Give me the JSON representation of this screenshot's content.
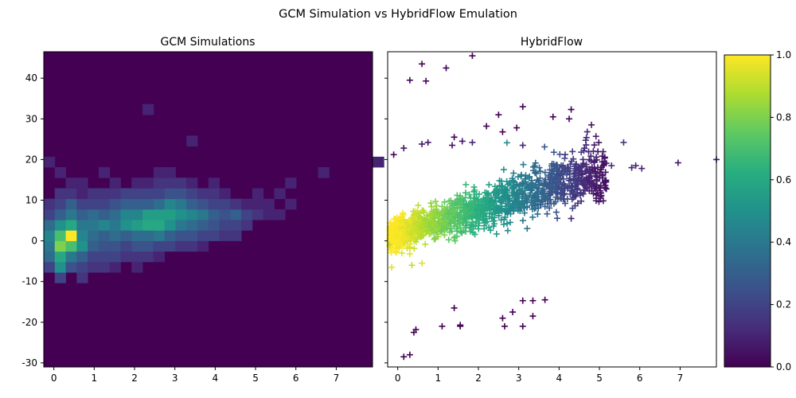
{
  "figure": {
    "suptitle": "GCM Simulation vs HybridFlow Emulation"
  },
  "chart_data": [
    {
      "type": "heatmap",
      "title": "GCM Simulations",
      "xlabel": "",
      "ylabel": "",
      "xlim": [
        -0.25,
        7.9
      ],
      "ylim": [
        -31,
        46.5
      ],
      "xticks": [
        0,
        1,
        2,
        3,
        4,
        5,
        6,
        7
      ],
      "yticks": [
        -30,
        -20,
        -10,
        0,
        10,
        20,
        30,
        40
      ],
      "colormap": "viridis",
      "bin_x0": -0.25,
      "bin_dx": 0.272,
      "bin_y0": -31,
      "bin_dy": 2.585,
      "cells": [
        [
          0,
          9,
          0.2
        ],
        [
          0,
          10,
          0.35
        ],
        [
          0,
          11,
          0.4
        ],
        [
          0,
          12,
          0.45
        ],
        [
          0,
          13,
          0.35
        ],
        [
          0,
          14,
          0.2
        ],
        [
          0,
          15,
          0.15
        ],
        [
          0,
          19,
          0.1
        ],
        [
          1,
          8,
          0.2
        ],
        [
          1,
          9,
          0.5
        ],
        [
          1,
          10,
          0.6
        ],
        [
          1,
          11,
          0.8
        ],
        [
          1,
          12,
          0.7
        ],
        [
          1,
          13,
          0.5
        ],
        [
          1,
          14,
          0.3
        ],
        [
          1,
          15,
          0.2
        ],
        [
          1,
          16,
          0.15
        ],
        [
          1,
          18,
          0.1
        ],
        [
          2,
          9,
          0.25
        ],
        [
          2,
          10,
          0.4
        ],
        [
          2,
          11,
          0.7
        ],
        [
          2,
          12,
          1.0
        ],
        [
          2,
          13,
          0.6
        ],
        [
          2,
          14,
          0.4
        ],
        [
          2,
          15,
          0.3
        ],
        [
          2,
          16,
          0.15
        ],
        [
          2,
          17,
          0.1
        ],
        [
          3,
          8,
          0.15
        ],
        [
          3,
          9,
          0.2
        ],
        [
          3,
          10,
          0.3
        ],
        [
          3,
          11,
          0.5
        ],
        [
          3,
          12,
          0.45
        ],
        [
          3,
          13,
          0.4
        ],
        [
          3,
          14,
          0.3
        ],
        [
          3,
          15,
          0.2
        ],
        [
          3,
          16,
          0.1
        ],
        [
          3,
          17,
          0.1
        ],
        [
          4,
          9,
          0.15
        ],
        [
          4,
          10,
          0.2
        ],
        [
          4,
          11,
          0.3
        ],
        [
          4,
          12,
          0.35
        ],
        [
          4,
          13,
          0.4
        ],
        [
          4,
          14,
          0.35
        ],
        [
          4,
          15,
          0.2
        ],
        [
          4,
          16,
          0.15
        ],
        [
          5,
          9,
          0.15
        ],
        [
          5,
          10,
          0.2
        ],
        [
          5,
          11,
          0.25
        ],
        [
          5,
          12,
          0.3
        ],
        [
          5,
          13,
          0.45
        ],
        [
          5,
          14,
          0.3
        ],
        [
          5,
          15,
          0.2
        ],
        [
          5,
          16,
          0.15
        ],
        [
          5,
          18,
          0.1
        ],
        [
          6,
          9,
          0.1
        ],
        [
          6,
          10,
          0.2
        ],
        [
          6,
          11,
          0.25
        ],
        [
          6,
          12,
          0.35
        ],
        [
          6,
          13,
          0.4
        ],
        [
          6,
          14,
          0.35
        ],
        [
          6,
          15,
          0.25
        ],
        [
          6,
          16,
          0.15
        ],
        [
          6,
          17,
          0.1
        ],
        [
          7,
          10,
          0.15
        ],
        [
          7,
          11,
          0.2
        ],
        [
          7,
          12,
          0.3
        ],
        [
          7,
          13,
          0.5
        ],
        [
          7,
          14,
          0.45
        ],
        [
          7,
          15,
          0.3
        ],
        [
          7,
          16,
          0.2
        ],
        [
          8,
          9,
          0.1
        ],
        [
          8,
          10,
          0.15
        ],
        [
          8,
          11,
          0.25
        ],
        [
          8,
          12,
          0.35
        ],
        [
          8,
          13,
          0.55
        ],
        [
          8,
          14,
          0.45
        ],
        [
          8,
          15,
          0.3
        ],
        [
          8,
          16,
          0.2
        ],
        [
          8,
          17,
          0.1
        ],
        [
          9,
          10,
          0.15
        ],
        [
          9,
          11,
          0.25
        ],
        [
          9,
          12,
          0.35
        ],
        [
          9,
          13,
          0.6
        ],
        [
          9,
          14,
          0.55
        ],
        [
          9,
          15,
          0.3
        ],
        [
          9,
          16,
          0.2
        ],
        [
          9,
          17,
          0.1
        ],
        [
          9,
          24,
          0.1
        ],
        [
          10,
          10,
          0.1
        ],
        [
          10,
          11,
          0.2
        ],
        [
          10,
          12,
          0.4
        ],
        [
          10,
          13,
          0.6
        ],
        [
          10,
          14,
          0.55
        ],
        [
          10,
          15,
          0.35
        ],
        [
          10,
          16,
          0.2
        ],
        [
          10,
          17,
          0.15
        ],
        [
          10,
          18,
          0.1
        ],
        [
          11,
          11,
          0.2
        ],
        [
          11,
          12,
          0.3
        ],
        [
          11,
          13,
          0.5
        ],
        [
          11,
          14,
          0.55
        ],
        [
          11,
          15,
          0.45
        ],
        [
          11,
          16,
          0.25
        ],
        [
          11,
          17,
          0.15
        ],
        [
          11,
          18,
          0.1
        ],
        [
          12,
          11,
          0.15
        ],
        [
          12,
          12,
          0.25
        ],
        [
          12,
          13,
          0.4
        ],
        [
          12,
          14,
          0.5
        ],
        [
          12,
          15,
          0.4
        ],
        [
          12,
          16,
          0.25
        ],
        [
          12,
          17,
          0.15
        ],
        [
          13,
          11,
          0.15
        ],
        [
          13,
          12,
          0.25
        ],
        [
          13,
          13,
          0.35
        ],
        [
          13,
          14,
          0.45
        ],
        [
          13,
          15,
          0.3
        ],
        [
          13,
          16,
          0.2
        ],
        [
          13,
          17,
          0.1
        ],
        [
          13,
          21,
          0.1
        ],
        [
          14,
          11,
          0.1
        ],
        [
          14,
          12,
          0.2
        ],
        [
          14,
          13,
          0.3
        ],
        [
          14,
          14,
          0.4
        ],
        [
          14,
          15,
          0.25
        ],
        [
          14,
          16,
          0.15
        ],
        [
          15,
          12,
          0.2
        ],
        [
          15,
          13,
          0.25
        ],
        [
          15,
          14,
          0.3
        ],
        [
          15,
          15,
          0.2
        ],
        [
          15,
          16,
          0.15
        ],
        [
          15,
          17,
          0.1
        ],
        [
          16,
          12,
          0.15
        ],
        [
          16,
          13,
          0.2
        ],
        [
          16,
          14,
          0.25
        ],
        [
          16,
          15,
          0.2
        ],
        [
          16,
          16,
          0.1
        ],
        [
          17,
          12,
          0.15
        ],
        [
          17,
          13,
          0.2
        ],
        [
          17,
          14,
          0.3
        ],
        [
          17,
          15,
          0.15
        ],
        [
          18,
          13,
          0.15
        ],
        [
          18,
          14,
          0.2
        ],
        [
          18,
          15,
          0.1
        ],
        [
          19,
          14,
          0.15
        ],
        [
          19,
          15,
          0.1
        ],
        [
          19,
          16,
          0.1
        ],
        [
          20,
          14,
          0.1
        ],
        [
          20,
          15,
          0.1
        ],
        [
          21,
          14,
          0.1
        ],
        [
          21,
          16,
          0.1
        ],
        [
          22,
          15,
          0.1
        ],
        [
          22,
          17,
          0.1
        ],
        [
          25,
          18,
          0.1
        ],
        [
          30,
          19,
          0.1
        ]
      ]
    },
    {
      "type": "scatter",
      "title": "HybridFlow",
      "marker": "+",
      "xlabel": "",
      "ylabel": "",
      "xlim": [
        -0.25,
        7.9
      ],
      "ylim": [
        -31,
        46.5
      ],
      "xticks": [
        0,
        1,
        2,
        3,
        4,
        5,
        6,
        7
      ],
      "yticks": [
        -30,
        -20,
        -10,
        0,
        10,
        20,
        30,
        40
      ],
      "colormap": "viridis",
      "points": [
        [
          1.85,
          45.5,
          0.0
        ],
        [
          0.6,
          43.5,
          0.0
        ],
        [
          1.2,
          42.5,
          0.0
        ],
        [
          0.3,
          39.5,
          0.0
        ],
        [
          0.7,
          39.3,
          0.0
        ],
        [
          3.1,
          33,
          0.0
        ],
        [
          4.3,
          32.3,
          0.0
        ],
        [
          2.5,
          31,
          0.0
        ],
        [
          3.85,
          30.5,
          0.0
        ],
        [
          4.25,
          30,
          0.0
        ],
        [
          2.2,
          28.2,
          0.0
        ],
        [
          2.95,
          27.8,
          0.0
        ],
        [
          2.6,
          26.8,
          0.0
        ],
        [
          1.4,
          25.5,
          0.0
        ],
        [
          1.6,
          24.5,
          0.05
        ],
        [
          0.75,
          24.2,
          0.05
        ],
        [
          0.6,
          23.8,
          0.05
        ],
        [
          1.35,
          23.5,
          0.05
        ],
        [
          1.85,
          24.2,
          0.1
        ],
        [
          3.1,
          23.5,
          0.1
        ],
        [
          0.15,
          22.8,
          0.05
        ],
        [
          -0.1,
          21.2,
          0.0
        ],
        [
          5.6,
          24.2,
          0.15
        ],
        [
          4.15,
          21.2,
          0.15
        ],
        [
          4.55,
          21.8,
          0.2
        ],
        [
          6.95,
          19.2,
          0.05
        ],
        [
          7.9,
          20,
          0.05
        ],
        [
          5.8,
          18,
          0.1
        ],
        [
          6.05,
          17.8,
          0.1
        ],
        [
          5.3,
          18.5,
          0.15
        ],
        [
          5.9,
          18.5,
          0.1
        ],
        [
          -0.2,
          -1,
          0.9
        ],
        [
          -0.15,
          -6.5,
          0.95
        ],
        [
          0.35,
          -6,
          0.9
        ],
        [
          0.1,
          -3,
          0.95
        ],
        [
          0.3,
          -3.2,
          0.95
        ],
        [
          0.6,
          -5.5,
          0.95
        ],
        [
          1.4,
          -16.5,
          0.0
        ],
        [
          2.6,
          -19,
          0.0
        ],
        [
          2.85,
          -17.5,
          0.0
        ],
        [
          3.1,
          -14.7,
          0.0
        ],
        [
          3.35,
          -14.7,
          0.0
        ],
        [
          3.65,
          -14.5,
          0.0
        ],
        [
          3.35,
          -18.5,
          0.0
        ],
        [
          2.65,
          -21,
          0.0
        ],
        [
          3.1,
          -21,
          0.0
        ],
        [
          1.55,
          -20.7,
          0.0
        ],
        [
          1.55,
          -21,
          0.0
        ],
        [
          1.1,
          -21,
          0.0
        ],
        [
          0.4,
          -22.5,
          0.0
        ],
        [
          0.45,
          -21.8,
          0.0
        ],
        [
          0.15,
          -28.5,
          0.0
        ],
        [
          0.3,
          -28,
          0.0
        ],
        [
          4.3,
          5.5,
          0.1
        ]
      ],
      "cloud": {
        "x_range": [
          -0.2,
          5.2
        ],
        "y_center": "2 + 2.9x",
        "color_value": "1 - 0.19x",
        "count": 1400
      }
    }
  ],
  "colorbar": {
    "ticks": [
      "0.0",
      "0.2",
      "0.4",
      "0.6",
      "0.8",
      "1.0"
    ],
    "range": [
      0.0,
      1.0
    ]
  }
}
